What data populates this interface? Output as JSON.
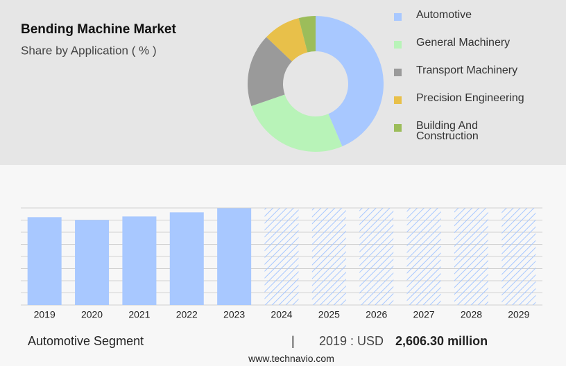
{
  "chart_data": [
    {
      "type": "pie",
      "title": "Bending Machine Market",
      "subtitle": "Share by Application ( % )",
      "categories": [
        "Automotive",
        "General Machinery",
        "Transport Machinery",
        "Precision Engineering",
        "Building And Construction"
      ],
      "values": [
        43.6,
        26.1,
        17.4,
        8.9,
        4.0
      ],
      "colors": [
        "#a8c8ff",
        "#b8f3b8",
        "#9a9a9a",
        "#e8c04a",
        "#9cbd5a"
      ]
    },
    {
      "type": "bar",
      "categories": [
        "2019",
        "2020",
        "2021",
        "2022",
        "2023",
        "2024",
        "2025",
        "2026",
        "2027",
        "2028",
        "2029"
      ],
      "values": [
        2606.3,
        2524,
        2627,
        2750,
        2873,
        null,
        null,
        null,
        null,
        null,
        null
      ],
      "color": "#a8c8ff",
      "ylim": [
        0,
        2880
      ]
    }
  ],
  "footer": {
    "segment": "Automotive Segment",
    "separator": "|",
    "year_label": "2019 : USD",
    "value": "2,606.30 million"
  },
  "website": "www.technavio.com"
}
